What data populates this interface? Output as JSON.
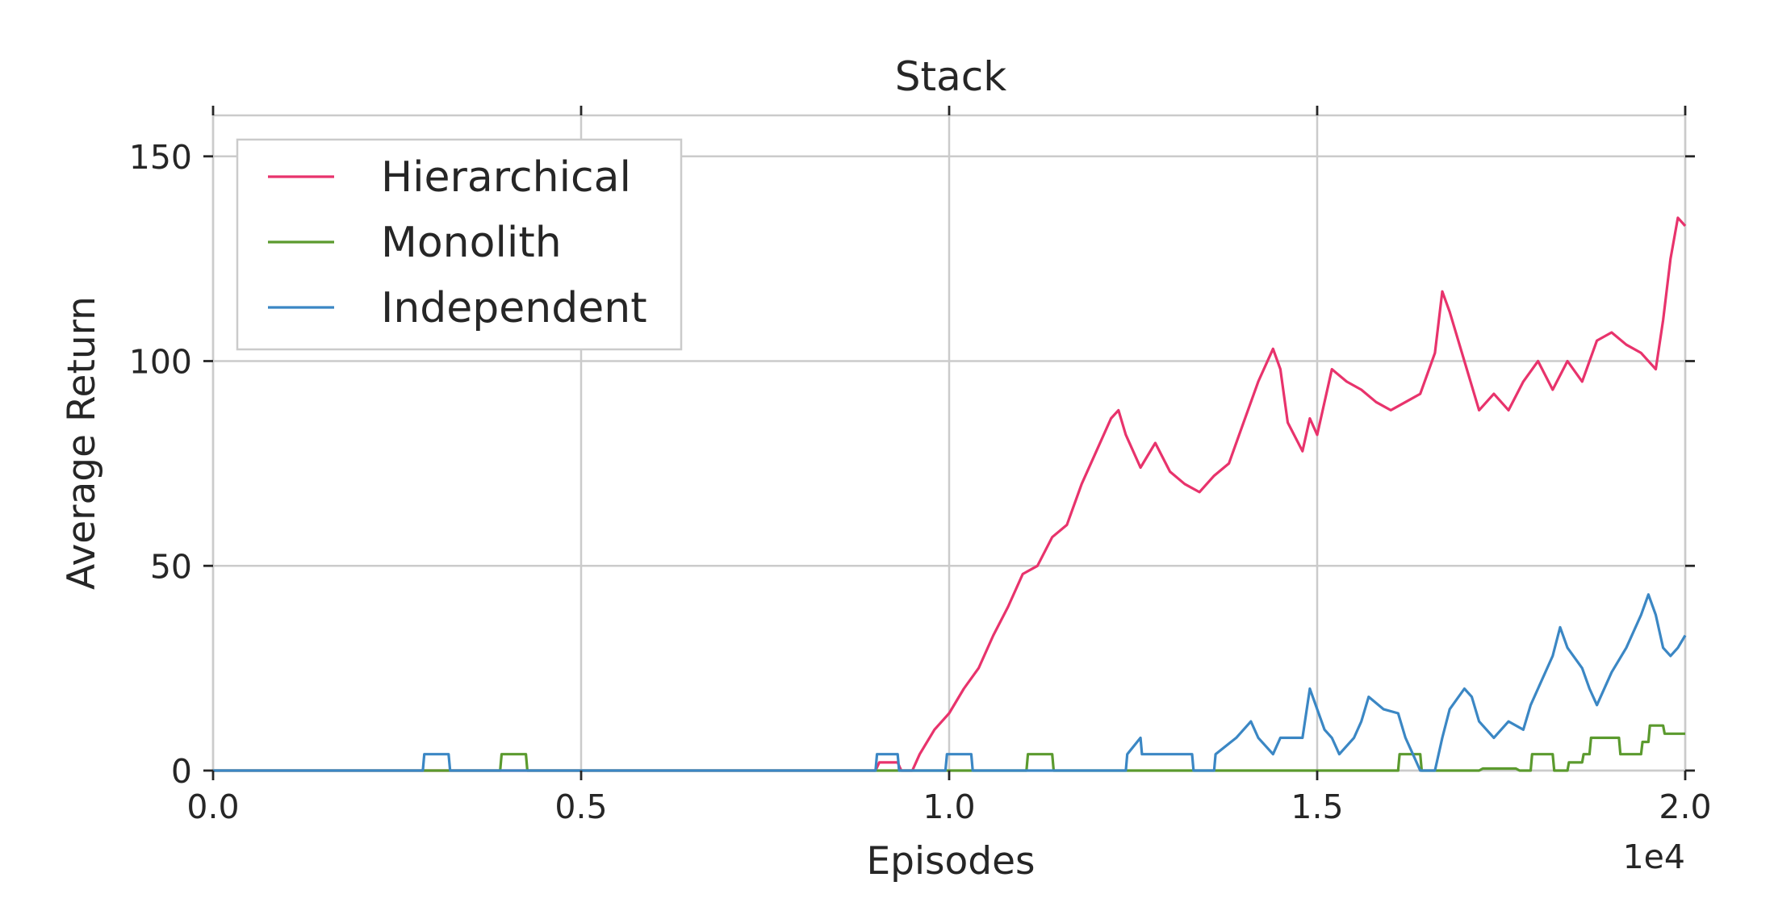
{
  "chart_data": {
    "type": "line",
    "title": "Stack",
    "xlabel": "Episodes",
    "ylabel": "Average Return",
    "x_offset_label": "1e4",
    "xlim": [
      0,
      2.0
    ],
    "ylim": [
      0,
      160
    ],
    "x_ticks": [
      0.0,
      0.5,
      1.0,
      1.5,
      2.0
    ],
    "x_tick_labels": [
      "0.0",
      "0.5",
      "1.0",
      "1.5",
      "2.0"
    ],
    "y_ticks": [
      0,
      50,
      100,
      150
    ],
    "y_tick_labels": [
      "0",
      "50",
      "100",
      "150"
    ],
    "grid": true,
    "legend_position": "top-left",
    "series": [
      {
        "name": "Hierarchical",
        "color": "#e8336c",
        "points": [
          [
            0,
            0
          ],
          [
            0.9,
            0
          ],
          [
            0.905,
            2
          ],
          [
            0.93,
            2
          ],
          [
            0.935,
            0
          ],
          [
            0.95,
            0
          ],
          [
            0.96,
            4
          ],
          [
            0.98,
            10
          ],
          [
            1.0,
            14
          ],
          [
            1.02,
            20
          ],
          [
            1.04,
            25
          ],
          [
            1.06,
            33
          ],
          [
            1.08,
            40
          ],
          [
            1.1,
            48
          ],
          [
            1.12,
            50
          ],
          [
            1.14,
            57
          ],
          [
            1.16,
            60
          ],
          [
            1.18,
            70
          ],
          [
            1.2,
            78
          ],
          [
            1.22,
            86
          ],
          [
            1.23,
            88
          ],
          [
            1.24,
            82
          ],
          [
            1.26,
            74
          ],
          [
            1.28,
            80
          ],
          [
            1.3,
            73
          ],
          [
            1.32,
            70
          ],
          [
            1.34,
            68
          ],
          [
            1.36,
            72
          ],
          [
            1.38,
            75
          ],
          [
            1.4,
            85
          ],
          [
            1.42,
            95
          ],
          [
            1.44,
            103
          ],
          [
            1.45,
            98
          ],
          [
            1.46,
            85
          ],
          [
            1.48,
            78
          ],
          [
            1.49,
            86
          ],
          [
            1.5,
            82
          ],
          [
            1.52,
            98
          ],
          [
            1.54,
            95
          ],
          [
            1.56,
            93
          ],
          [
            1.58,
            90
          ],
          [
            1.6,
            88
          ],
          [
            1.62,
            90
          ],
          [
            1.64,
            92
          ],
          [
            1.66,
            102
          ],
          [
            1.67,
            117
          ],
          [
            1.68,
            112
          ],
          [
            1.7,
            100
          ],
          [
            1.72,
            88
          ],
          [
            1.74,
            92
          ],
          [
            1.76,
            88
          ],
          [
            1.78,
            95
          ],
          [
            1.8,
            100
          ],
          [
            1.82,
            93
          ],
          [
            1.84,
            100
          ],
          [
            1.86,
            95
          ],
          [
            1.88,
            105
          ],
          [
            1.9,
            107
          ],
          [
            1.92,
            104
          ],
          [
            1.94,
            102
          ],
          [
            1.96,
            98
          ],
          [
            1.97,
            110
          ],
          [
            1.98,
            125
          ],
          [
            1.99,
            135
          ],
          [
            2.0,
            133
          ]
        ]
      },
      {
        "name": "Monolith",
        "color": "#5b9a2e",
        "points": [
          [
            0,
            0
          ],
          [
            0.39,
            0
          ],
          [
            0.392,
            4
          ],
          [
            0.425,
            4
          ],
          [
            0.427,
            0
          ],
          [
            1.105,
            0
          ],
          [
            1.107,
            4
          ],
          [
            1.14,
            4
          ],
          [
            1.142,
            0
          ],
          [
            1.61,
            0
          ],
          [
            1.612,
            4
          ],
          [
            1.64,
            4
          ],
          [
            1.642,
            0
          ],
          [
            1.72,
            0
          ],
          [
            1.725,
            0.5
          ],
          [
            1.77,
            0.5
          ],
          [
            1.775,
            0
          ],
          [
            1.79,
            0
          ],
          [
            1.792,
            4
          ],
          [
            1.82,
            4
          ],
          [
            1.822,
            0
          ],
          [
            1.84,
            0
          ],
          [
            1.842,
            2
          ],
          [
            1.86,
            2
          ],
          [
            1.862,
            4
          ],
          [
            1.87,
            4
          ],
          [
            1.872,
            8
          ],
          [
            1.91,
            8
          ],
          [
            1.912,
            4
          ],
          [
            1.94,
            4
          ],
          [
            1.942,
            7
          ],
          [
            1.95,
            7
          ],
          [
            1.952,
            11
          ],
          [
            1.97,
            11
          ],
          [
            1.972,
            9
          ],
          [
            2.0,
            9
          ]
        ]
      },
      {
        "name": "Independent",
        "color": "#3b87c4",
        "points": [
          [
            0,
            0
          ],
          [
            0.285,
            0
          ],
          [
            0.287,
            4
          ],
          [
            0.32,
            4
          ],
          [
            0.322,
            0
          ],
          [
            0.9,
            0
          ],
          [
            0.902,
            4
          ],
          [
            0.93,
            4
          ],
          [
            0.932,
            0
          ],
          [
            0.995,
            0
          ],
          [
            0.997,
            4
          ],
          [
            1.03,
            4
          ],
          [
            1.032,
            0
          ],
          [
            1.24,
            0
          ],
          [
            1.242,
            4
          ],
          [
            1.26,
            8
          ],
          [
            1.262,
            4
          ],
          [
            1.33,
            4
          ],
          [
            1.332,
            0
          ],
          [
            1.36,
            0
          ],
          [
            1.362,
            4
          ],
          [
            1.39,
            8
          ],
          [
            1.41,
            12
          ],
          [
            1.42,
            8
          ],
          [
            1.44,
            4
          ],
          [
            1.45,
            8
          ],
          [
            1.48,
            8
          ],
          [
            1.49,
            20
          ],
          [
            1.5,
            15
          ],
          [
            1.51,
            10
          ],
          [
            1.52,
            8
          ],
          [
            1.53,
            4
          ],
          [
            1.55,
            8
          ],
          [
            1.56,
            12
          ],
          [
            1.57,
            18
          ],
          [
            1.59,
            15
          ],
          [
            1.61,
            14
          ],
          [
            1.62,
            8
          ],
          [
            1.63,
            4
          ],
          [
            1.64,
            0
          ],
          [
            1.66,
            0
          ],
          [
            1.67,
            8
          ],
          [
            1.68,
            15
          ],
          [
            1.7,
            20
          ],
          [
            1.71,
            18
          ],
          [
            1.72,
            12
          ],
          [
            1.74,
            8
          ],
          [
            1.76,
            12
          ],
          [
            1.78,
            10
          ],
          [
            1.79,
            16
          ],
          [
            1.8,
            20
          ],
          [
            1.82,
            28
          ],
          [
            1.83,
            35
          ],
          [
            1.84,
            30
          ],
          [
            1.86,
            25
          ],
          [
            1.87,
            20
          ],
          [
            1.88,
            16
          ],
          [
            1.9,
            24
          ],
          [
            1.92,
            30
          ],
          [
            1.94,
            38
          ],
          [
            1.95,
            43
          ],
          [
            1.96,
            38
          ],
          [
            1.97,
            30
          ],
          [
            1.98,
            28
          ],
          [
            1.99,
            30
          ],
          [
            2.0,
            33
          ]
        ]
      }
    ]
  }
}
